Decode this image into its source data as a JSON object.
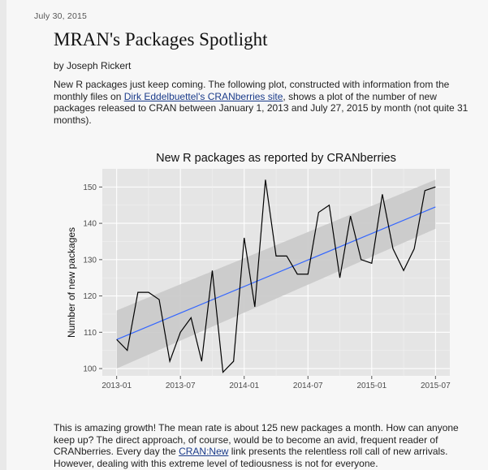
{
  "post": {
    "date": "July 30, 2015",
    "title": "MRAN's Packages Spotlight",
    "byline": "by Joseph Rickert",
    "intro": {
      "before_link1": "New R packages just keep coming. The following plot, constructed with information from the monthly files on ",
      "link1": "Dirk Eddelbuettel's CRANberries site",
      "after_link1": ", shows a plot of the number of new packages released to CRAN between January 1, 2013 and July 27, 2015 by month (not quite 31 months)."
    },
    "outro": {
      "before_link2": "This is amazing growth! The mean rate is about 125 new packages a month. How can anyone keep up? The direct approach, of course, would be to become an avid, frequent reader of CRANberries. Every day the ",
      "link2": "CRAN:New",
      "after_link2": " link presents the relentless roll call of new arrivals. However, dealing with this extreme level of tediousness is not for everyone."
    }
  },
  "colors": {
    "panel_bg": "#e5e5e5",
    "grid": "#ffffff",
    "line": "#000000",
    "trend": "#3366ff",
    "band": "#c9c9c9",
    "link": "#1a3b8a"
  },
  "chart_data": {
    "type": "line",
    "title": "New R packages as reported by CRANberries",
    "xlabel": "",
    "ylabel": "Number of new packages",
    "ylim": [
      98,
      155
    ],
    "yticks": [
      100,
      110,
      120,
      130,
      140,
      150
    ],
    "xticks": [
      "2013-01",
      "2013-07",
      "2014-01",
      "2014-07",
      "2015-01",
      "2015-07"
    ],
    "grid": true,
    "x": [
      "2013-01",
      "2013-02",
      "2013-03",
      "2013-04",
      "2013-05",
      "2013-06",
      "2013-07",
      "2013-08",
      "2013-09",
      "2013-10",
      "2013-11",
      "2013-12",
      "2014-01",
      "2014-02",
      "2014-03",
      "2014-04",
      "2014-05",
      "2014-06",
      "2014-07",
      "2014-08",
      "2014-09",
      "2014-10",
      "2014-11",
      "2014-12",
      "2015-01",
      "2015-02",
      "2015-03",
      "2015-04",
      "2015-05",
      "2015-06",
      "2015-07"
    ],
    "series": [
      {
        "values": [
          108,
          105,
          121,
          121,
          119,
          102,
          110,
          114,
          102,
          127,
          99,
          102,
          136,
          117,
          152,
          131,
          131,
          126,
          126,
          143,
          145,
          125,
          142,
          130,
          129,
          148,
          133,
          127,
          133,
          149,
          150
        ]
      }
    ],
    "trend": {
      "start": 108,
      "end": 144.5
    },
    "confidence_band": {
      "start": [
        100,
        116
      ],
      "end": [
        138.5,
        152
      ]
    }
  }
}
